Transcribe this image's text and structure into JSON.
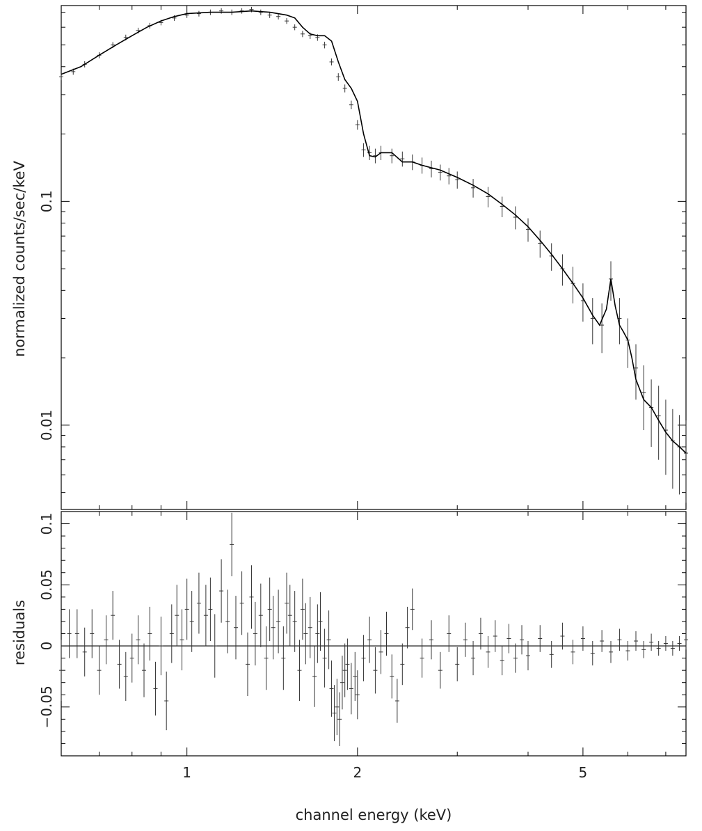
{
  "chart_data": {
    "type": "line",
    "x_scale": "log",
    "xlabel": "channel energy (keV)",
    "xlim": [
      0.6,
      7.6
    ],
    "x_ticks": [
      1,
      2,
      5
    ],
    "x_tick_labels": [
      "1",
      "2",
      "5"
    ],
    "color_data": "#333333",
    "color_model": "#000000",
    "panels": [
      {
        "ylabel": "normalized counts/sec/keV",
        "y_scale": "log",
        "ylim": [
          0.0042,
          0.75
        ],
        "y_ticks": [
          0.01,
          0.1
        ],
        "y_tick_labels": [
          "0.01",
          "0.1"
        ],
        "series": [
          {
            "kind": "errorbar",
            "x": [
              0.6,
              0.63,
              0.66,
              0.7,
              0.74,
              0.78,
              0.82,
              0.86,
              0.9,
              0.95,
              1.0,
              1.05,
              1.1,
              1.15,
              1.2,
              1.25,
              1.3,
              1.35,
              1.4,
              1.45,
              1.5,
              1.55,
              1.6,
              1.65,
              1.7,
              1.75,
              1.8,
              1.85,
              1.9,
              1.95,
              2.0,
              2.05,
              2.1,
              2.15,
              2.2,
              2.3,
              2.4,
              2.5,
              2.6,
              2.7,
              2.8,
              2.9,
              3.0,
              3.2,
              3.4,
              3.6,
              3.8,
              4.0,
              4.2,
              4.4,
              4.6,
              4.8,
              5.0,
              5.2,
              5.4,
              5.6,
              5.8,
              6.0,
              6.2,
              6.4,
              6.6,
              6.8,
              7.0,
              7.2,
              7.4,
              7.6
            ],
            "y": [
              0.36,
              0.38,
              0.41,
              0.45,
              0.5,
              0.54,
              0.58,
              0.61,
              0.63,
              0.66,
              0.68,
              0.69,
              0.7,
              0.71,
              0.7,
              0.71,
              0.72,
              0.7,
              0.68,
              0.67,
              0.64,
              0.6,
              0.56,
              0.55,
              0.54,
              0.5,
              0.42,
              0.36,
              0.32,
              0.27,
              0.22,
              0.17,
              0.165,
              0.16,
              0.165,
              0.16,
              0.155,
              0.15,
              0.145,
              0.14,
              0.135,
              0.13,
              0.125,
              0.115,
              0.105,
              0.095,
              0.085,
              0.075,
              0.065,
              0.057,
              0.05,
              0.043,
              0.036,
              0.03,
              0.028,
              0.045,
              0.03,
              0.024,
              0.018,
              0.014,
              0.012,
              0.011,
              0.0095,
              0.0085,
              0.008,
              0.0075
            ],
            "yerr": [
              0.012,
              0.012,
              0.013,
              0.014,
              0.015,
              0.016,
              0.017,
              0.018,
              0.018,
              0.019,
              0.02,
              0.02,
              0.02,
              0.02,
              0.02,
              0.02,
              0.02,
              0.02,
              0.02,
              0.02,
              0.019,
              0.018,
              0.018,
              0.018,
              0.018,
              0.017,
              0.015,
              0.014,
              0.013,
              0.012,
              0.011,
              0.012,
              0.012,
              0.012,
              0.012,
              0.012,
              0.012,
              0.012,
              0.012,
              0.012,
              0.011,
              0.011,
              0.011,
              0.011,
              0.011,
              0.01,
              0.01,
              0.009,
              0.009,
              0.008,
              0.008,
              0.008,
              0.007,
              0.007,
              0.007,
              0.009,
              0.007,
              0.006,
              0.005,
              0.0045,
              0.004,
              0.004,
              0.0035,
              0.0033,
              0.0031,
              0.003
            ]
          },
          {
            "kind": "model",
            "x": [
              0.6,
              0.65,
              0.7,
              0.75,
              0.8,
              0.85,
              0.9,
              0.95,
              1.0,
              1.1,
              1.2,
              1.3,
              1.4,
              1.5,
              1.55,
              1.6,
              1.65,
              1.7,
              1.75,
              1.8,
              1.85,
              1.9,
              1.95,
              2.0,
              2.05,
              2.1,
              2.15,
              2.2,
              2.3,
              2.4,
              2.5,
              2.6,
              2.8,
              3.0,
              3.2,
              3.4,
              3.6,
              3.8,
              4.0,
              4.2,
              4.4,
              4.6,
              4.8,
              5.0,
              5.2,
              5.35,
              5.5,
              5.6,
              5.7,
              5.8,
              5.9,
              6.0,
              6.1,
              6.2,
              6.4,
              6.6,
              6.8,
              7.0,
              7.2,
              7.4,
              7.6
            ],
            "y": [
              0.37,
              0.4,
              0.45,
              0.5,
              0.55,
              0.6,
              0.64,
              0.67,
              0.69,
              0.7,
              0.7,
              0.71,
              0.7,
              0.68,
              0.66,
              0.6,
              0.56,
              0.55,
              0.55,
              0.52,
              0.42,
              0.35,
              0.32,
              0.28,
              0.2,
              0.16,
              0.158,
              0.165,
              0.165,
              0.15,
              0.15,
              0.145,
              0.138,
              0.128,
              0.118,
              0.108,
              0.097,
              0.087,
              0.077,
              0.067,
              0.058,
              0.05,
              0.043,
              0.037,
              0.031,
              0.028,
              0.033,
              0.045,
              0.034,
              0.028,
              0.026,
              0.024,
              0.02,
              0.016,
              0.013,
              0.012,
              0.0105,
              0.0093,
              0.0085,
              0.008,
              0.0075
            ]
          }
        ]
      },
      {
        "ylabel": "residuals",
        "y_scale": "linear",
        "ylim": [
          -0.09,
          0.11
        ],
        "y_ticks": [
          -0.05,
          0,
          0.05,
          0.1
        ],
        "y_tick_labels": [
          "−0.05",
          "0",
          "0.05",
          "0.1"
        ],
        "series": [
          {
            "kind": "errorbar",
            "x": [
              0.6,
              0.62,
              0.64,
              0.66,
              0.68,
              0.7,
              0.72,
              0.74,
              0.76,
              0.78,
              0.8,
              0.82,
              0.84,
              0.86,
              0.88,
              0.9,
              0.92,
              0.94,
              0.96,
              0.98,
              1.0,
              1.02,
              1.05,
              1.08,
              1.1,
              1.12,
              1.15,
              1.18,
              1.2,
              1.22,
              1.25,
              1.28,
              1.3,
              1.32,
              1.35,
              1.38,
              1.4,
              1.42,
              1.45,
              1.48,
              1.5,
              1.52,
              1.55,
              1.58,
              1.6,
              1.62,
              1.65,
              1.68,
              1.7,
              1.72,
              1.75,
              1.78,
              1.8,
              1.82,
              1.84,
              1.86,
              1.88,
              1.9,
              1.92,
              1.95,
              1.98,
              2.0,
              2.05,
              2.1,
              2.15,
              2.2,
              2.25,
              2.3,
              2.35,
              2.4,
              2.45,
              2.5,
              2.6,
              2.7,
              2.8,
              2.9,
              3.0,
              3.1,
              3.2,
              3.3,
              3.4,
              3.5,
              3.6,
              3.7,
              3.8,
              3.9,
              4.0,
              4.2,
              4.4,
              4.6,
              4.8,
              5.0,
              5.2,
              5.4,
              5.6,
              5.8,
              6.0,
              6.2,
              6.4,
              6.6,
              6.8,
              7.0,
              7.2,
              7.4,
              7.6
            ],
            "y": [
              -0.02,
              0.01,
              0.01,
              -0.005,
              0.01,
              -0.02,
              0.005,
              0.025,
              -0.015,
              -0.025,
              -0.01,
              0.005,
              -0.02,
              0.01,
              -0.035,
              0.0,
              -0.045,
              0.01,
              0.025,
              0.005,
              0.03,
              0.02,
              0.035,
              0.025,
              0.03,
              0.0,
              0.045,
              0.02,
              0.083,
              0.015,
              0.035,
              -0.015,
              0.04,
              0.01,
              0.025,
              -0.01,
              0.03,
              0.015,
              0.02,
              -0.01,
              0.035,
              0.025,
              0.02,
              -0.02,
              0.03,
              0.01,
              0.015,
              -0.025,
              0.01,
              0.02,
              -0.01,
              0.005,
              -0.035,
              -0.055,
              -0.05,
              -0.06,
              -0.03,
              -0.02,
              -0.015,
              -0.035,
              -0.025,
              -0.04,
              -0.01,
              0.005,
              -0.02,
              -0.005,
              0.01,
              -0.025,
              -0.045,
              -0.015,
              0.015,
              0.03,
              -0.01,
              0.005,
              -0.02,
              0.01,
              -0.015,
              0.005,
              -0.01,
              0.01,
              -0.005,
              0.008,
              -0.012,
              0.006,
              -0.01,
              0.005,
              -0.008,
              0.006,
              -0.007,
              0.008,
              -0.005,
              0.006,
              -0.006,
              0.004,
              -0.005,
              0.005,
              -0.004,
              0.004,
              -0.003,
              0.003,
              -0.002,
              0.002,
              -0.002,
              0.002,
              0.005
            ],
            "yerr": [
              0.025,
              0.02,
              0.02,
              0.02,
              0.02,
              0.02,
              0.02,
              0.02,
              0.02,
              0.02,
              0.02,
              0.02,
              0.022,
              0.022,
              0.022,
              0.024,
              0.024,
              0.024,
              0.025,
              0.025,
              0.025,
              0.025,
              0.025,
              0.025,
              0.026,
              0.026,
              0.026,
              0.026,
              0.026,
              0.026,
              0.026,
              0.026,
              0.026,
              0.026,
              0.026,
              0.026,
              0.026,
              0.026,
              0.026,
              0.026,
              0.025,
              0.025,
              0.025,
              0.025,
              0.025,
              0.025,
              0.025,
              0.025,
              0.024,
              0.024,
              0.024,
              0.024,
              0.023,
              0.023,
              0.023,
              0.022,
              0.022,
              0.022,
              0.021,
              0.021,
              0.02,
              0.02,
              0.019,
              0.019,
              0.019,
              0.018,
              0.018,
              0.018,
              0.018,
              0.017,
              0.017,
              0.017,
              0.016,
              0.016,
              0.015,
              0.015,
              0.014,
              0.014,
              0.014,
              0.013,
              0.013,
              0.013,
              0.012,
              0.012,
              0.012,
              0.012,
              0.012,
              0.011,
              0.011,
              0.011,
              0.01,
              0.01,
              0.01,
              0.009,
              0.009,
              0.009,
              0.008,
              0.008,
              0.007,
              0.007,
              0.006,
              0.006,
              0.006,
              0.006,
              0.008
            ]
          }
        ]
      }
    ]
  }
}
